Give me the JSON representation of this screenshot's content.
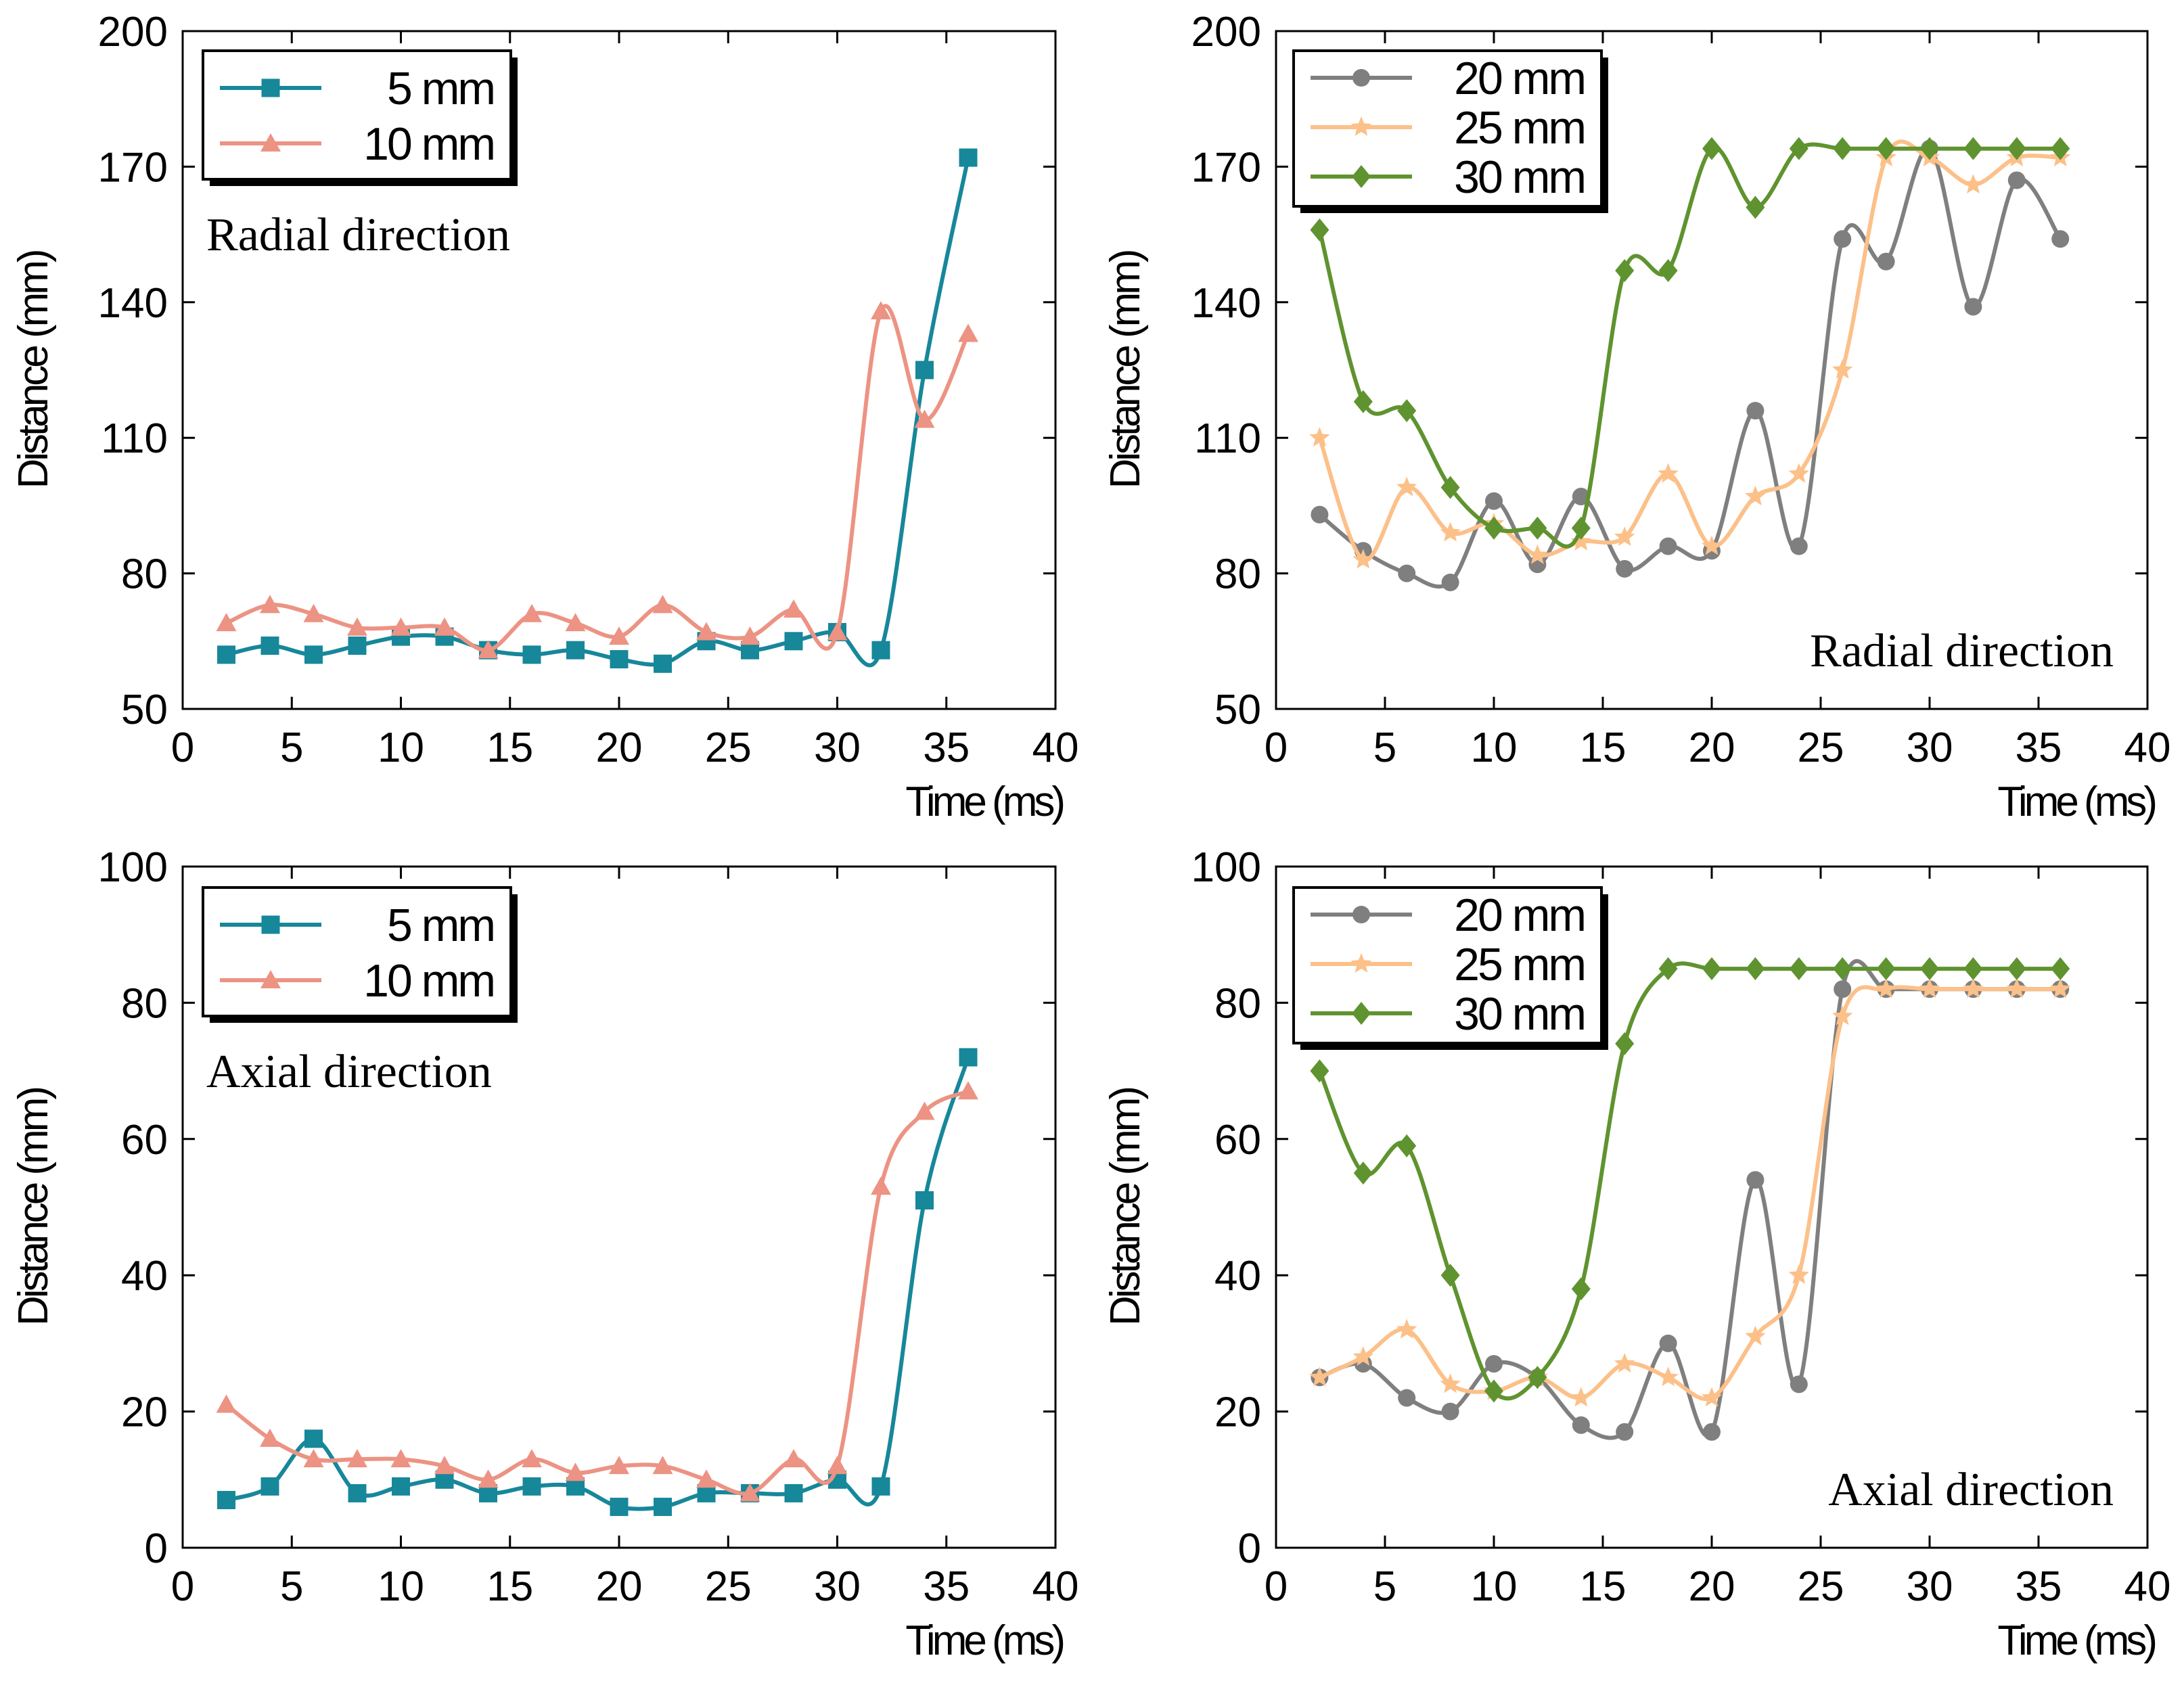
{
  "figure": {
    "x_label": "Time (ms)",
    "y_label": "Distance (mm)"
  },
  "chart_data": [
    {
      "type": "line",
      "id": "top-left",
      "annotation": "Radial direction",
      "xlabel": "Time (ms)",
      "ylabel": "Distance (mm)",
      "xlim": [
        0,
        40
      ],
      "ylim": [
        50,
        200
      ],
      "xticks": [
        0,
        5,
        10,
        15,
        20,
        25,
        30,
        35,
        40
      ],
      "yticks": [
        50,
        80,
        110,
        140,
        170,
        200
      ],
      "x": [
        2,
        4,
        6,
        8,
        10,
        12,
        14,
        16,
        18,
        20,
        22,
        24,
        26,
        28,
        30,
        32,
        34,
        36
      ],
      "series": [
        {
          "name": "5 mm",
          "color": "#17879a",
          "marker": "square",
          "values": [
            62,
            64,
            62,
            64,
            66,
            66,
            63,
            62,
            63,
            61,
            60,
            65,
            63,
            65,
            67,
            63,
            125,
            172
          ]
        },
        {
          "name": "10 mm",
          "color": "#ec9384",
          "marker": "triangle",
          "values": [
            69,
            73,
            71,
            68,
            68,
            68,
            63,
            71,
            69,
            66,
            73,
            67,
            66,
            72,
            67,
            138,
            114,
            133
          ]
        }
      ]
    },
    {
      "type": "line",
      "id": "top-right",
      "annotation": "Radial direction",
      "xlabel": "Time (ms)",
      "ylabel": "Distance (mm)",
      "xlim": [
        0,
        40
      ],
      "ylim": [
        50,
        200
      ],
      "xticks": [
        0,
        5,
        10,
        15,
        20,
        25,
        30,
        35,
        40
      ],
      "yticks": [
        50,
        80,
        110,
        140,
        170,
        200
      ],
      "x": [
        2,
        4,
        6,
        8,
        10,
        12,
        14,
        16,
        18,
        20,
        22,
        24,
        26,
        28,
        30,
        32,
        34,
        36
      ],
      "series": [
        {
          "name": "20 mm",
          "color": "#7f7f7f",
          "marker": "circle",
          "values": [
            93,
            85,
            80,
            78,
            96,
            82,
            97,
            81,
            86,
            85,
            116,
            86,
            154,
            149,
            174,
            139,
            167,
            154
          ]
        },
        {
          "name": "25 mm",
          "color": "#fcc089",
          "marker": "star",
          "values": [
            110,
            83,
            99,
            89,
            91,
            84,
            87,
            88,
            102,
            86,
            97,
            102,
            125,
            172,
            172,
            166,
            172,
            172
          ]
        },
        {
          "name": "30 mm",
          "color": "#5f932f",
          "marker": "diamond",
          "values": [
            156,
            118,
            116,
            99,
            90,
            90,
            90,
            147,
            147,
            174,
            161,
            174,
            174,
            174,
            174,
            174,
            174,
            174
          ]
        }
      ]
    },
    {
      "type": "line",
      "id": "bottom-left",
      "annotation": "Axial direction",
      "xlabel": "Time (ms)",
      "ylabel": "Distance (mm)",
      "xlim": [
        0,
        40
      ],
      "ylim": [
        0,
        100
      ],
      "xticks": [
        0,
        5,
        10,
        15,
        20,
        25,
        30,
        35,
        40
      ],
      "yticks": [
        0,
        20,
        40,
        60,
        80,
        100
      ],
      "x": [
        2,
        4,
        6,
        8,
        10,
        12,
        14,
        16,
        18,
        20,
        22,
        24,
        26,
        28,
        30,
        32,
        34,
        36
      ],
      "series": [
        {
          "name": "5 mm",
          "color": "#17879a",
          "marker": "square",
          "values": [
            7,
            9,
            16,
            8,
            9,
            10,
            8,
            9,
            9,
            6,
            6,
            8,
            8,
            8,
            10,
            9,
            51,
            72
          ]
        },
        {
          "name": "10 mm",
          "color": "#ec9384",
          "marker": "triangle",
          "values": [
            21,
            16,
            13,
            13,
            13,
            12,
            10,
            13,
            11,
            12,
            12,
            10,
            8,
            13,
            12,
            53,
            64,
            67
          ]
        }
      ]
    },
    {
      "type": "line",
      "id": "bottom-right",
      "annotation": "Axial direction",
      "xlabel": "Time (ms)",
      "ylabel": "Distance (mm)",
      "xlim": [
        0,
        40
      ],
      "ylim": [
        0,
        100
      ],
      "xticks": [
        0,
        5,
        10,
        15,
        20,
        25,
        30,
        35,
        40
      ],
      "yticks": [
        0,
        20,
        40,
        60,
        80,
        100
      ],
      "x": [
        2,
        4,
        6,
        8,
        10,
        12,
        14,
        16,
        18,
        20,
        22,
        24,
        26,
        28,
        30,
        32,
        34,
        36
      ],
      "series": [
        {
          "name": "20 mm",
          "color": "#7f7f7f",
          "marker": "circle",
          "values": [
            25,
            27,
            22,
            20,
            27,
            25,
            18,
            17,
            30,
            17,
            54,
            24,
            82,
            82,
            82,
            82,
            82,
            82
          ]
        },
        {
          "name": "25 mm",
          "color": "#fcc089",
          "marker": "star",
          "values": [
            25,
            28,
            32,
            24,
            23,
            25,
            22,
            27,
            25,
            22,
            31,
            40,
            78,
            82,
            82,
            82,
            82,
            82
          ]
        },
        {
          "name": "30 mm",
          "color": "#5f932f",
          "marker": "diamond",
          "values": [
            70,
            55,
            59,
            40,
            23,
            25,
            38,
            74,
            85,
            85,
            85,
            85,
            85,
            85,
            85,
            85,
            85,
            85
          ]
        }
      ]
    }
  ]
}
